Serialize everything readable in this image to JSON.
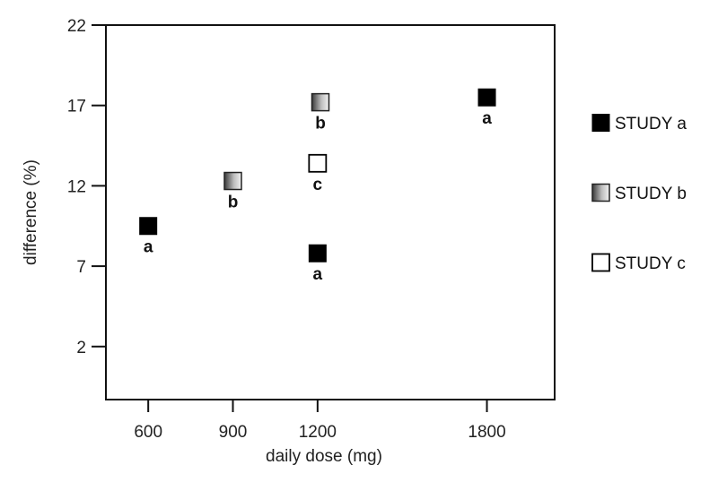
{
  "chart_data": {
    "type": "scatter",
    "xlabel": "daily dose (mg)",
    "ylabel": "difference (%)",
    "xlim": [
      450,
      2040
    ],
    "ylim": [
      -1.3,
      22
    ],
    "x_ticks": [
      600,
      900,
      1200,
      1800
    ],
    "y_ticks": [
      2,
      7,
      12,
      17,
      22
    ],
    "grid": false,
    "legend_position": "right",
    "series": [
      {
        "name": "STUDY a",
        "style": "solid",
        "color": "#000000",
        "points": [
          {
            "x": 600,
            "y": 9.5,
            "label": "a"
          },
          {
            "x": 1200,
            "y": 7.8,
            "label": "a"
          },
          {
            "x": 1800,
            "y": 17.5,
            "label": "a"
          }
        ]
      },
      {
        "name": "STUDY b",
        "style": "gradient",
        "color": "#808080",
        "points": [
          {
            "x": 900,
            "y": 12.3,
            "label": "b"
          },
          {
            "x": 1210,
            "y": 17.2,
            "label": "b"
          }
        ]
      },
      {
        "name": "STUDY c",
        "style": "hollow",
        "color": "#000000",
        "points": [
          {
            "x": 1200,
            "y": 13.4,
            "label": "c"
          }
        ]
      }
    ]
  }
}
